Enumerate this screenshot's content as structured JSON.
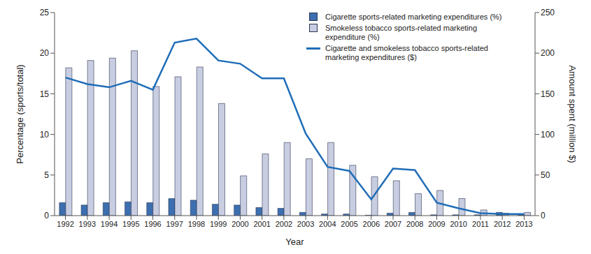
{
  "chart_data": {
    "type": "bar",
    "categories": [
      "1992",
      "1993",
      "1994",
      "1995",
      "1996",
      "1997",
      "1998",
      "1999",
      "2000",
      "2001",
      "2002",
      "2003",
      "2004",
      "2005",
      "2006",
      "2007",
      "2008",
      "2009",
      "2010",
      "2011",
      "2012",
      "2013"
    ],
    "series": [
      {
        "name": "Cigarette sports-related marketing expenditures (%)",
        "type": "bar",
        "color": "#3d6fb0",
        "values": [
          1.6,
          1.3,
          1.6,
          1.7,
          1.6,
          2.1,
          1.9,
          1.4,
          1.3,
          1.0,
          0.9,
          0.4,
          0.2,
          0.2,
          0.05,
          0.3,
          0.4,
          0.1,
          0.1,
          0.1,
          0.4,
          0.1
        ]
      },
      {
        "name": "Smokeless tobacco sports-related marketing expenditure (%)",
        "type": "bar",
        "color": "#c9cde2",
        "values": [
          18.2,
          19.1,
          19.4,
          20.3,
          15.9,
          17.1,
          18.3,
          13.8,
          4.9,
          7.6,
          9.0,
          7.0,
          9.0,
          6.2,
          4.8,
          4.3,
          2.7,
          3.1,
          2.1,
          0.7,
          0.3,
          0.4
        ]
      },
      {
        "name": "Cigarette and smokeless tobacco sports-related marketing expenditures ($)",
        "type": "line",
        "axis": "y2",
        "color": "#1f6db8",
        "values": [
          170,
          162,
          158,
          166,
          155,
          213,
          218,
          191,
          187,
          169,
          169,
          101,
          60,
          55,
          20,
          58,
          56,
          16,
          9,
          3,
          2,
          2
        ]
      }
    ],
    "x_label": "Year",
    "y_label": "Percentage (sports/total)",
    "y2_label": "Amount spent (million $)",
    "ylim": [
      0,
      25
    ],
    "yticks": [
      0,
      5,
      10,
      15,
      20,
      25
    ],
    "y2lim": [
      0,
      250
    ],
    "y2ticks": [
      0,
      50,
      100,
      150,
      200,
      250
    ],
    "grid": false,
    "legend": "upper right"
  }
}
